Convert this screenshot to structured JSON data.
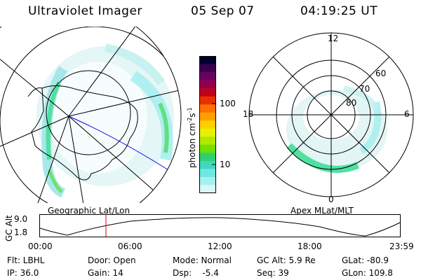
{
  "header": {
    "instrument": "Ultraviolet Imager",
    "date": "05 Sep 07",
    "time": "04:19:25 UT"
  },
  "colorbar": {
    "unit": "photon cm",
    "unit_sup1": "-2",
    "unit_mid": "s",
    "unit_sup2": "-1",
    "ticks": [
      "100",
      "10"
    ],
    "colors": [
      "#000030",
      "#3a0050",
      "#6a0060",
      "#900050",
      "#c00020",
      "#e83000",
      "#ff7000",
      "#ffa000",
      "#ffd000",
      "#e8f000",
      "#b0e800",
      "#70e000",
      "#30d070",
      "#40d8c0",
      "#70e8e0",
      "#a8f0f0",
      "#d8f8f8"
    ]
  },
  "left_map": {
    "label": "Geographic Lat/Lon"
  },
  "right_map": {
    "label": "Apex MLat/MLT",
    "mlt_labels": {
      "top": "12",
      "left": "18",
      "right": "6",
      "bottom": "0"
    },
    "lat_labels": [
      "60",
      "70",
      "80"
    ]
  },
  "altitude_plot": {
    "ylabel": "GC Alt",
    "yticks": [
      "9.0",
      "1.8"
    ],
    "xticks": [
      "00:00",
      "06:00",
      "12:00",
      "18:00",
      "23:59"
    ],
    "marker_time": "04:19:25"
  },
  "info": {
    "flt": "Flt: LBHL",
    "door": "Door: Open",
    "mode": "Mode: Normal",
    "gcalt": "GC Alt: 5.9 Re",
    "glat": "GLat: -80.9",
    "ip": "IP: 36.0",
    "gain": "Gain: 14",
    "dsp": "Dsp:    -5.4",
    "seq": "Seq: 39",
    "glon": "GLon: 109.8"
  },
  "accent_colors": {
    "aurora": "#50e0a0",
    "glow": "#bfeff0",
    "marker": "#e00000",
    "track": "#0000ff"
  }
}
